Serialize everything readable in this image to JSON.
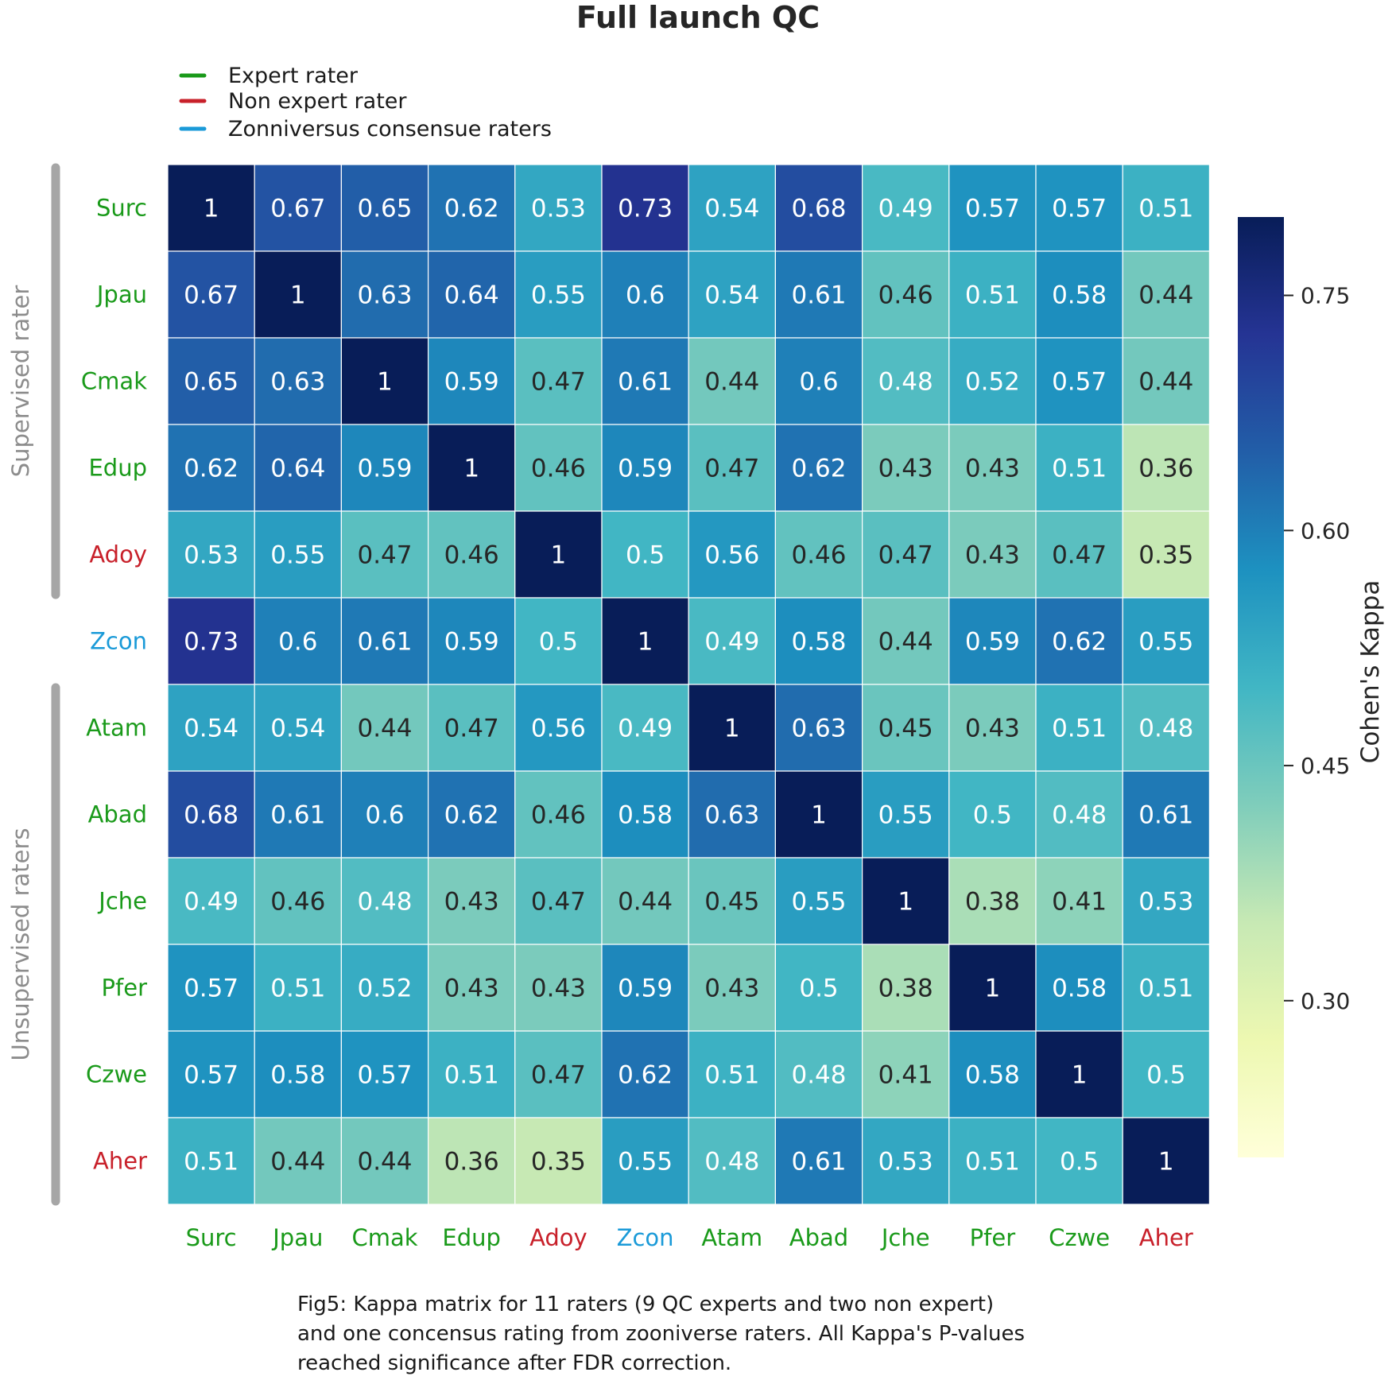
{
  "chart_data": {
    "type": "heatmap",
    "title": "Full launch QC",
    "rows": [
      "Surc",
      "Jpau",
      "Cmak",
      "Edup",
      "Adoy",
      "Zcon",
      "Atam",
      "Abad",
      "Jche",
      "Pfer",
      "Czwe",
      "Aher"
    ],
    "cols": [
      "Surc",
      "Jpau",
      "Cmak",
      "Edup",
      "Adoy",
      "Zcon",
      "Atam",
      "Abad",
      "Jche",
      "Pfer",
      "Czwe",
      "Aher"
    ],
    "values": [
      [
        1,
        0.67,
        0.65,
        0.62,
        0.53,
        0.73,
        0.54,
        0.68,
        0.49,
        0.57,
        0.57,
        0.51
      ],
      [
        0.67,
        1,
        0.63,
        0.64,
        0.55,
        0.6,
        0.54,
        0.61,
        0.46,
        0.51,
        0.58,
        0.44
      ],
      [
        0.65,
        0.63,
        1,
        0.59,
        0.47,
        0.61,
        0.44,
        0.6,
        0.48,
        0.52,
        0.57,
        0.44
      ],
      [
        0.62,
        0.64,
        0.59,
        1,
        0.46,
        0.59,
        0.47,
        0.62,
        0.43,
        0.43,
        0.51,
        0.36
      ],
      [
        0.53,
        0.55,
        0.47,
        0.46,
        1,
        0.5,
        0.56,
        0.46,
        0.47,
        0.43,
        0.47,
        0.35
      ],
      [
        0.73,
        0.6,
        0.61,
        0.59,
        0.5,
        1,
        0.49,
        0.58,
        0.44,
        0.59,
        0.62,
        0.55
      ],
      [
        0.54,
        0.54,
        0.44,
        0.47,
        0.56,
        0.49,
        1,
        0.63,
        0.45,
        0.43,
        0.51,
        0.48
      ],
      [
        0.68,
        0.61,
        0.6,
        0.62,
        0.46,
        0.58,
        0.63,
        1,
        0.55,
        0.5,
        0.48,
        0.61
      ],
      [
        0.49,
        0.46,
        0.48,
        0.43,
        0.47,
        0.44,
        0.45,
        0.55,
        1,
        0.38,
        0.41,
        0.53
      ],
      [
        0.57,
        0.51,
        0.52,
        0.43,
        0.43,
        0.59,
        0.43,
        0.5,
        0.38,
        1,
        0.58,
        0.51
      ],
      [
        0.57,
        0.58,
        0.57,
        0.51,
        0.47,
        0.62,
        0.51,
        0.48,
        0.41,
        0.58,
        1,
        0.5
      ],
      [
        0.51,
        0.44,
        0.44,
        0.36,
        0.35,
        0.55,
        0.48,
        0.61,
        0.53,
        0.51,
        0.5,
        1
      ]
    ],
    "rater_types": [
      "expert",
      "expert",
      "expert",
      "expert",
      "nonexpert",
      "consensus",
      "expert",
      "expert",
      "expert",
      "expert",
      "expert",
      "nonexpert"
    ],
    "colormap": "YlGnBu",
    "vmin": 0.2,
    "vmax": 0.8,
    "colorbar": {
      "label": "Cohen's Kappa",
      "ticks": [
        0.3,
        0.45,
        0.6,
        0.75
      ],
      "tick_labels": [
        "0.30",
        "0.45",
        "0.60",
        "0.75"
      ]
    },
    "legend": {
      "placement": "top-left",
      "items": [
        {
          "key": "expert",
          "label": "Expert rater",
          "color": "#1a9a1a"
        },
        {
          "key": "nonexpert",
          "label": "Non expert rater",
          "color": "#c8202a"
        },
        {
          "key": "consensus",
          "label": "Zonniversus consensue raters",
          "color": "#1a9ad8"
        }
      ]
    },
    "groups": [
      {
        "label": "Supervised rater",
        "rows": [
          0,
          4
        ]
      },
      {
        "label": "Unsupervised raters",
        "rows": [
          6,
          11
        ]
      }
    ]
  },
  "caption": [
    "Fig5: Kappa matrix for 11 raters (9 QC experts and two non expert)",
    "and one concensus rating from zooniverse raters. All Kappa's P-values",
    "reached significance after FDR correction."
  ]
}
